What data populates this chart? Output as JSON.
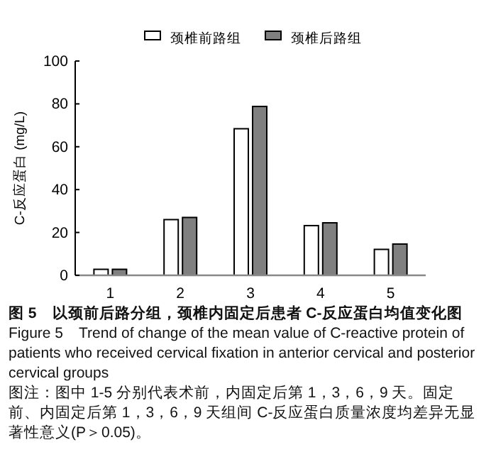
{
  "chart_data": {
    "type": "bar",
    "title": "图 5　以颈前后路分组，颈椎内固定后患者 C-反应蛋白均值变化图",
    "subtitle": "Figure 5　Trend of change of the mean value of C-reactive protein of patients who received cervical fixation in anterior cervical and posterior cervical groups",
    "ylabel": "C-反应蛋白 (mg/L)",
    "categories": [
      "1",
      "2",
      "3",
      "4",
      "5"
    ],
    "series": [
      {
        "name": "颈椎前路组",
        "color": "#ffffff",
        "values": [
          2.8,
          26,
          68.4,
          23.2,
          12.1
        ]
      },
      {
        "name": "颈椎后路组",
        "color": "#808080",
        "values": [
          2.8,
          27,
          78.8,
          24.5,
          14.6
        ]
      }
    ],
    "ylim": [
      0,
      100
    ],
    "yticks": [
      0,
      20,
      40,
      60,
      80,
      100
    ],
    "legend": "top",
    "grid": false,
    "annotations": [
      "图注：图中 1-5 分别代表术前，内固定后第 1，3，6，9 天。固定前、内固定后第 1，3，6，9 天组间 C-反应蛋白质量浓度均差异无显著性意义(P＞0.05)。"
    ]
  }
}
